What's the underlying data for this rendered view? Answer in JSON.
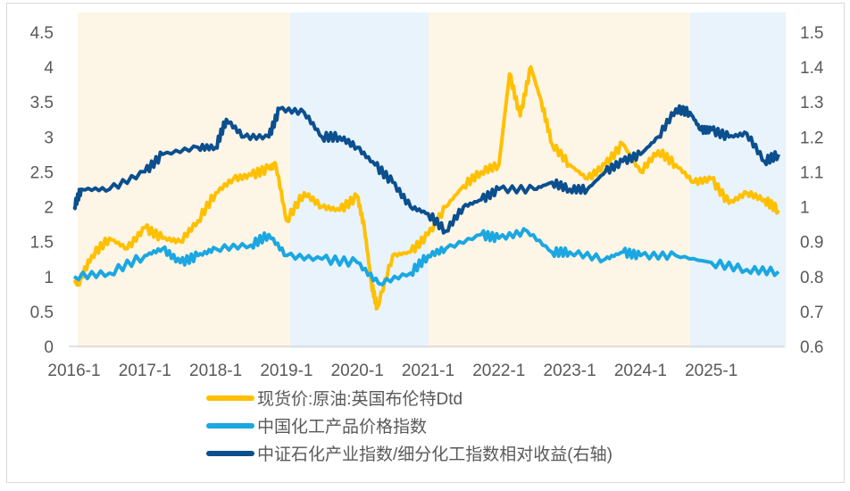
{
  "chart_data": {
    "type": "line",
    "title": "",
    "x_tick_labels": [
      "2016-1",
      "2017-1",
      "2018-1",
      "2019-1",
      "2020-1",
      "2021-1",
      "2022-1",
      "2023-1",
      "2024-1",
      "2025-1"
    ],
    "x_range": [
      2016.0,
      2026.0
    ],
    "y_left": {
      "range": [
        0,
        4.5
      ],
      "ticks": [
        "0",
        "0.5",
        "1",
        "1.5",
        "2",
        "2.5",
        "3",
        "3.5",
        "4",
        "4.5"
      ]
    },
    "y_right": {
      "range": [
        0.6,
        1.5
      ],
      "ticks": [
        "0.6",
        "0.7",
        "0.8",
        "0.9",
        "1",
        "1.1",
        "1.2",
        "1.3",
        "1.4",
        "1.5"
      ]
    },
    "grid": false,
    "legend_position": "bottom",
    "shaded_periods": [
      {
        "from": 2016.05,
        "to": 2019.05,
        "color": "#fdf5e6"
      },
      {
        "from": 2019.05,
        "to": 2021.0,
        "color": "#e8f3fb"
      },
      {
        "from": 2021.0,
        "to": 2024.7,
        "color": "#fdf5e6"
      },
      {
        "from": 2024.7,
        "to": 2026.05,
        "color": "#e8f3fb"
      }
    ],
    "series": [
      {
        "name": "现货价:原油:英国布伦特Dtd",
        "color": "#ffc000",
        "axis": "left",
        "x": [
          2016.0,
          2016.05,
          2016.25,
          2016.5,
          2016.75,
          2017.0,
          2017.25,
          2017.5,
          2017.75,
          2018.0,
          2018.25,
          2018.5,
          2018.75,
          2018.85,
          2019.0,
          2019.25,
          2019.5,
          2019.75,
          2020.0,
          2020.1,
          2020.2,
          2020.28,
          2020.5,
          2020.75,
          2021.0,
          2021.25,
          2021.5,
          2021.75,
          2022.0,
          2022.15,
          2022.3,
          2022.45,
          2022.6,
          2022.75,
          2023.0,
          2023.25,
          2023.5,
          2023.75,
          2024.0,
          2024.25,
          2024.5,
          2024.75,
          2025.0,
          2025.25,
          2025.5,
          2025.75,
          2025.95
        ],
        "y": [
          0.95,
          0.88,
          1.3,
          1.55,
          1.4,
          1.7,
          1.55,
          1.5,
          1.8,
          2.2,
          2.4,
          2.45,
          2.55,
          2.6,
          1.8,
          2.2,
          2.0,
          1.95,
          2.15,
          1.7,
          0.9,
          0.55,
          1.3,
          1.35,
          1.6,
          2.0,
          2.3,
          2.5,
          2.6,
          3.9,
          3.3,
          4.0,
          3.5,
          2.9,
          2.6,
          2.4,
          2.6,
          2.9,
          2.5,
          2.8,
          2.6,
          2.35,
          2.4,
          2.05,
          2.2,
          2.1,
          1.95
        ]
      },
      {
        "name": "中国化工产品价格指数",
        "color": "#1ba7e1",
        "axis": "left",
        "x": [
          2016.0,
          2016.5,
          2017.0,
          2017.25,
          2017.5,
          2017.75,
          2018.0,
          2018.5,
          2018.75,
          2019.0,
          2019.5,
          2020.0,
          2020.3,
          2020.75,
          2021.0,
          2021.25,
          2021.75,
          2022.0,
          2022.4,
          2022.75,
          2023.0,
          2023.5,
          2023.75,
          2024.0,
          2024.5,
          2025.0,
          2025.5,
          2025.95
        ],
        "y": [
          1.0,
          1.05,
          1.3,
          1.4,
          1.2,
          1.3,
          1.4,
          1.45,
          1.6,
          1.3,
          1.25,
          1.2,
          0.9,
          1.05,
          1.3,
          1.4,
          1.6,
          1.55,
          1.65,
          1.35,
          1.35,
          1.25,
          1.35,
          1.3,
          1.3,
          1.2,
          1.1,
          1.07
        ]
      },
      {
        "name": "中证石化产业指数/细分化工指数相对收益(右轴)",
        "color": "#0b4f8f",
        "axis": "right",
        "x": [
          2016.0,
          2016.1,
          2016.5,
          2017.0,
          2017.25,
          2017.75,
          2018.0,
          2018.15,
          2018.4,
          2018.75,
          2018.9,
          2019.25,
          2019.5,
          2019.75,
          2020.0,
          2020.25,
          2020.5,
          2020.75,
          2021.0,
          2021.25,
          2021.5,
          2021.75,
          2022.0,
          2022.5,
          2022.75,
          2023.0,
          2023.25,
          2023.5,
          2023.75,
          2024.0,
          2024.25,
          2024.5,
          2024.7,
          2024.85,
          2025.0,
          2025.25,
          2025.5,
          2025.75,
          2025.95
        ],
        "y": [
          1.0,
          1.05,
          1.05,
          1.1,
          1.15,
          1.17,
          1.17,
          1.25,
          1.2,
          1.2,
          1.28,
          1.27,
          1.2,
          1.2,
          1.17,
          1.12,
          1.07,
          1.0,
          0.98,
          0.93,
          1.0,
          1.02,
          1.05,
          1.05,
          1.07,
          1.05,
          1.05,
          1.1,
          1.13,
          1.15,
          1.2,
          1.28,
          1.27,
          1.22,
          1.22,
          1.2,
          1.21,
          1.13,
          1.15
        ]
      }
    ]
  }
}
